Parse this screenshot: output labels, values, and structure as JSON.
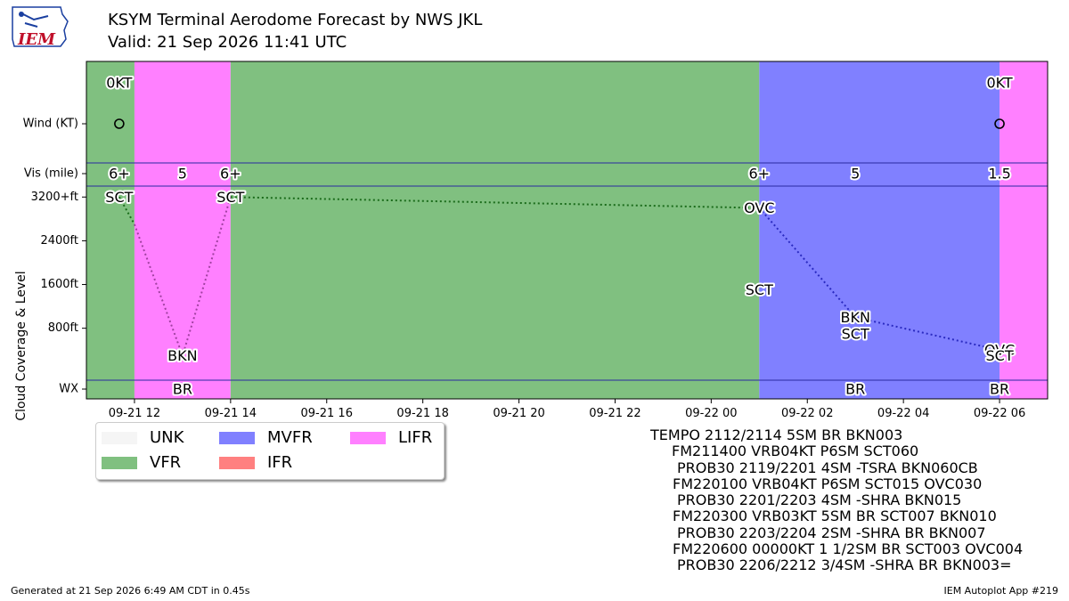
{
  "header": {
    "title": "KSYM Terminal Aerodome Forecast by NWS JKL",
    "subtitle": "Valid: 21 Sep 2026 11:41 UTC"
  },
  "logo": {
    "text": "IEM"
  },
  "chart_data": {
    "type": "timeline",
    "x_range": [
      "2026-09-21T11:00Z",
      "2026-09-22T07:00Z"
    ],
    "x_ticks": [
      {
        "t": "2026-09-21T12:00Z",
        "label": "09-21 12"
      },
      {
        "t": "2026-09-21T14:00Z",
        "label": "09-21 14"
      },
      {
        "t": "2026-09-21T16:00Z",
        "label": "09-21 16"
      },
      {
        "t": "2026-09-21T18:00Z",
        "label": "09-21 18"
      },
      {
        "t": "2026-09-21T20:00Z",
        "label": "09-21 20"
      },
      {
        "t": "2026-09-21T22:00Z",
        "label": "09-21 22"
      },
      {
        "t": "2026-09-22T00:00Z",
        "label": "09-22 00"
      },
      {
        "t": "2026-09-22T02:00Z",
        "label": "09-22 02"
      },
      {
        "t": "2026-09-22T04:00Z",
        "label": "09-22 04"
      },
      {
        "t": "2026-09-22T06:00Z",
        "label": "09-22 06"
      }
    ],
    "y_row_labels": [
      "Wind (KT)",
      "Vis (mile)",
      "WX"
    ],
    "y_cloud_ticks": [
      "3200+ft",
      "2400ft",
      "1600ft",
      "800ft"
    ],
    "y_cloud_values": [
      3200,
      2400,
      1600,
      800
    ],
    "ylabel": "Cloud Coverage & Level",
    "cloud_ylim": [
      -150,
      3400
    ],
    "categories": [
      {
        "start": "2026-09-21T11:00Z",
        "end": "2026-09-21T12:00Z",
        "cat": "VFR"
      },
      {
        "start": "2026-09-21T12:00Z",
        "end": "2026-09-21T14:00Z",
        "cat": "LIFR"
      },
      {
        "start": "2026-09-21T14:00Z",
        "end": "2026-09-22T01:00Z",
        "cat": "VFR"
      },
      {
        "start": "2026-09-22T01:00Z",
        "end": "2026-09-22T06:00Z",
        "cat": "MVFR"
      },
      {
        "start": "2026-09-22T06:00Z",
        "end": "2026-09-22T07:00Z",
        "cat": "LIFR"
      }
    ],
    "colors": {
      "UNK": "#f5f5f5",
      "VFR": "#80c080",
      "MVFR": "#8080ff",
      "IFR": "#ff8080",
      "LIFR": "#ff80ff"
    },
    "wind": [
      {
        "t": "2026-09-21T11:41Z",
        "label": "0KT"
      },
      {
        "t": "2026-09-22T06:00Z",
        "label": "0KT"
      }
    ],
    "visibility": [
      {
        "t": "2026-09-21T11:41Z",
        "label": "6+"
      },
      {
        "t": "2026-09-21T13:00Z",
        "label": "5"
      },
      {
        "t": "2026-09-21T14:00Z",
        "label": "6+"
      },
      {
        "t": "2026-09-22T01:00Z",
        "label": "6+"
      },
      {
        "t": "2026-09-22T03:00Z",
        "label": "5"
      },
      {
        "t": "2026-09-22T06:00Z",
        "label": "1.5"
      }
    ],
    "weather": [
      {
        "t": "2026-09-21T13:00Z",
        "label": "BR"
      },
      {
        "t": "2026-09-22T03:00Z",
        "label": "BR"
      },
      {
        "t": "2026-09-22T06:00Z",
        "label": "BR"
      }
    ],
    "cloud_layers": [
      {
        "t": "2026-09-21T11:41Z",
        "level": 3200,
        "label": "SCT"
      },
      {
        "t": "2026-09-21T13:00Z",
        "level": 300,
        "label": "BKN"
      },
      {
        "t": "2026-09-21T14:00Z",
        "level": 3200,
        "label": "SCT"
      },
      {
        "t": "2026-09-22T01:00Z",
        "level": 3000,
        "label": "OVC"
      },
      {
        "t": "2026-09-22T01:00Z",
        "level": 1500,
        "label": "SCT"
      },
      {
        "t": "2026-09-22T03:00Z",
        "level": 1000,
        "label": "BKN"
      },
      {
        "t": "2026-09-22T03:00Z",
        "level": 700,
        "label": "SCT"
      },
      {
        "t": "2026-09-22T06:00Z",
        "level": 400,
        "label": "OVC"
      },
      {
        "t": "2026-09-22T06:00Z",
        "level": 300,
        "label": "SCT"
      }
    ],
    "cloud_lines": [
      {
        "color": "#1a6b1a",
        "points": [
          {
            "t": "2026-09-21T11:41Z",
            "level": 3200
          },
          {
            "t": "2026-09-21T12:00Z",
            "level": 2700
          }
        ]
      },
      {
        "color": "#a040a0",
        "points": [
          {
            "t": "2026-09-21T12:00Z",
            "level": 2700
          },
          {
            "t": "2026-09-21T13:00Z",
            "level": 300
          },
          {
            "t": "2026-09-21T14:00Z",
            "level": 3200
          }
        ]
      },
      {
        "color": "#1a6b1a",
        "points": [
          {
            "t": "2026-09-21T14:00Z",
            "level": 3200
          },
          {
            "t": "2026-09-22T01:00Z",
            "level": 3000
          }
        ]
      },
      {
        "color": "#2a2ac0",
        "points": [
          {
            "t": "2026-09-22T01:00Z",
            "level": 3000
          },
          {
            "t": "2026-09-22T03:00Z",
            "level": 1000
          },
          {
            "t": "2026-09-22T06:00Z",
            "level": 400
          }
        ]
      }
    ]
  },
  "legend": {
    "items": [
      {
        "key": "UNK",
        "label": "UNK"
      },
      {
        "key": "MVFR",
        "label": "MVFR"
      },
      {
        "key": "LIFR",
        "label": "LIFR"
      },
      {
        "key": "VFR",
        "label": "VFR"
      },
      {
        "key": "IFR",
        "label": "IFR"
      }
    ]
  },
  "taf_text": [
    "TEMPO 2112/2114 5SM BR BKN003",
    "FM211400 VRB04KT P6SM SCT060",
    "PROB30 2119/2201 4SM -TSRA BKN060CB",
    "FM220100 VRB04KT P6SM SCT015 OVC030",
    "PROB30 2201/2203 4SM -SHRA BKN015",
    "FM220300 VRB03KT 5SM BR SCT007 BKN010",
    "PROB30 2203/2204 2SM -SHRA BR BKN007",
    "FM220600 00000KT 1 1/2SM BR SCT003 OVC004",
    "PROB30 2206/2212 3/4SM -SHRA BR BKN003="
  ],
  "footer": {
    "left": "Generated at 21 Sep 2026 6:49 AM CDT in 0.45s",
    "right": "IEM Autoplot App #219"
  }
}
